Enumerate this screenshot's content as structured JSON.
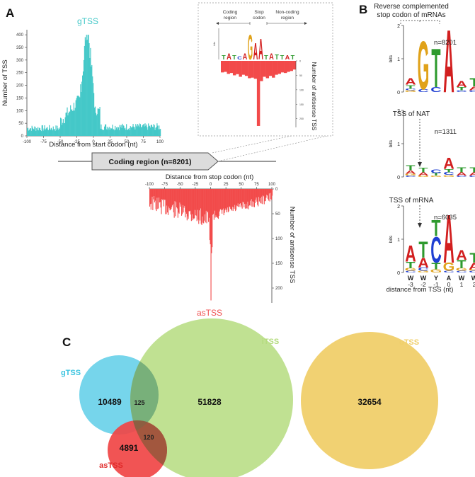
{
  "panels": {
    "a": "A",
    "b": "B",
    "c": "C"
  },
  "colors": {
    "gtss": "#44c8c8",
    "astss": "#f24a4a",
    "itss": "#b5dc7f",
    "otss": "#f0cf6a",
    "gtss_circle": "#6fd3ea",
    "astss_circle": "#f04545",
    "overlap_dark": "#8a5a3a"
  },
  "panel_a": {
    "gtss_hist": {
      "title": "gTSS",
      "ylabel": "Number of TSS",
      "xlabel": "Distance from start codon (nt)",
      "xticks": [
        -100,
        -75,
        -50,
        -25,
        0,
        25,
        50,
        75,
        100
      ],
      "yticks": [
        0,
        50,
        100,
        150,
        200,
        250,
        300,
        350,
        400
      ]
    },
    "coding_region_label": "Coding region (n=8201)",
    "astss_hist": {
      "title": "asTSS",
      "xlabel": "Distance from stop codon (nt)",
      "ylabel": "Number of antisense TSS",
      "xticks": [
        -100,
        -75,
        -50,
        -25,
        0,
        25,
        50,
        75,
        100
      ],
      "yticks": [
        0,
        50,
        100,
        150,
        200
      ]
    },
    "inset": {
      "region_labels": [
        "Coding\nregion",
        "Stop\ncodon",
        "Non-coding\nregion"
      ],
      "ylabel": "Number of antisense TSS",
      "yticks": [
        0,
        50,
        100,
        150,
        200
      ],
      "bits_label": "bits"
    }
  },
  "panel_b": {
    "title_line1": "Reverse complemented",
    "title_line2": "stop codon of mRNAs",
    "logos": [
      {
        "title": "",
        "n": "n=8201"
      },
      {
        "title": "TSS of NAT",
        "n": "n=1311"
      },
      {
        "title": "TSS of mRNA",
        "n": "n=6035"
      }
    ],
    "ylabel": "bits",
    "yticks": [
      0,
      1,
      2
    ],
    "consensus": [
      "W",
      "W",
      "Y",
      "A",
      "W",
      "W"
    ],
    "positions": [
      "-3",
      "-2",
      "-1",
      "0",
      "1",
      "2"
    ],
    "xlabel": "distance from TSS (nt)"
  },
  "panel_c": {
    "sets": [
      {
        "name": "gTSS",
        "count": "10489"
      },
      {
        "name": "iTSS",
        "count": "51828"
      },
      {
        "name": "oTSS",
        "count": "32654"
      },
      {
        "name": "asTSS",
        "count": "4891"
      }
    ],
    "overlaps": [
      {
        "sets": "gTSS∩iTSS",
        "count": "125"
      },
      {
        "sets": "asTSS∩iTSS",
        "count": "120"
      }
    ]
  },
  "chart_data": [
    {
      "type": "bar",
      "title": "gTSS",
      "xlabel": "Distance from start codon (nt)",
      "ylabel": "Number of TSS",
      "xlim": [
        -100,
        100
      ],
      "ylim": [
        0,
        420
      ],
      "series": [
        {
          "name": "gTSS",
          "x_range": [
            -100,
            100
          ],
          "peak_x": -10,
          "peak_value": 400,
          "baseline_value": 25
        }
      ]
    },
    {
      "type": "bar",
      "title": "asTSS",
      "xlabel": "Distance from stop codon (nt)",
      "ylabel": "Number of antisense TSS",
      "orientation": "downward",
      "xlim": [
        -100,
        100
      ],
      "ylim": [
        0,
        230
      ],
      "series": [
        {
          "name": "asTSS",
          "x_range": [
            -100,
            100
          ],
          "peak_x": 0,
          "peak_value": 225,
          "baseline_value": 20
        }
      ]
    }
  ]
}
